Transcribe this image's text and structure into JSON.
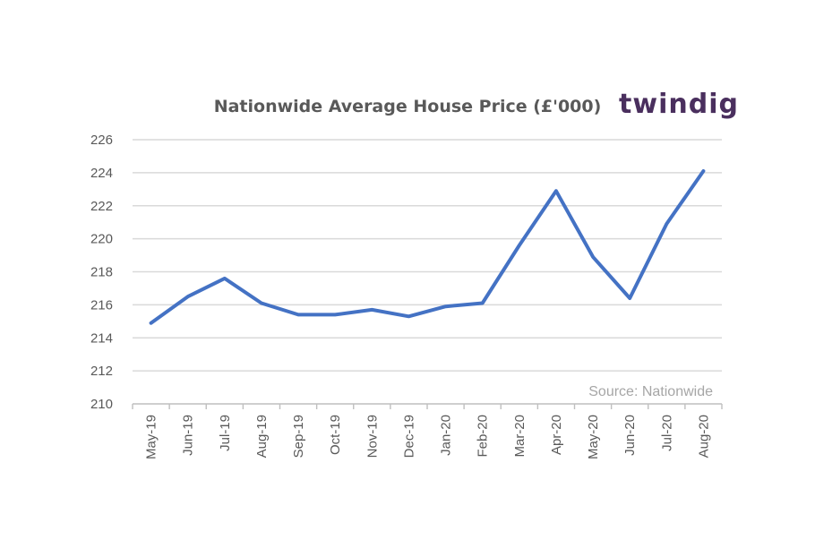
{
  "logo": {
    "text": "twindig"
  },
  "chart_data": {
    "type": "line",
    "title": "Nationwide Average House Price (£'000)",
    "source": "Source: Nationwide",
    "x": [
      "May-19",
      "Jun-19",
      "Jul-19",
      "Aug-19",
      "Sep-19",
      "Oct-19",
      "Nov-19",
      "Dec-19",
      "Jan-20",
      "Feb-20",
      "Mar-20",
      "Apr-20",
      "May-20",
      "Jun-20",
      "Jul-20",
      "Aug-20"
    ],
    "series": [
      {
        "values": [
          214.9,
          216.5,
          217.6,
          216.1,
          215.4,
          215.4,
          215.7,
          215.3,
          215.9,
          216.1,
          219.6,
          222.9,
          218.9,
          216.4,
          220.9,
          224.1
        ]
      }
    ],
    "ylim": [
      210,
      226
    ],
    "yticks": [
      210,
      212,
      214,
      216,
      218,
      220,
      222,
      224,
      226
    ],
    "grid": true,
    "colors": {
      "series": "#4472c4"
    }
  }
}
